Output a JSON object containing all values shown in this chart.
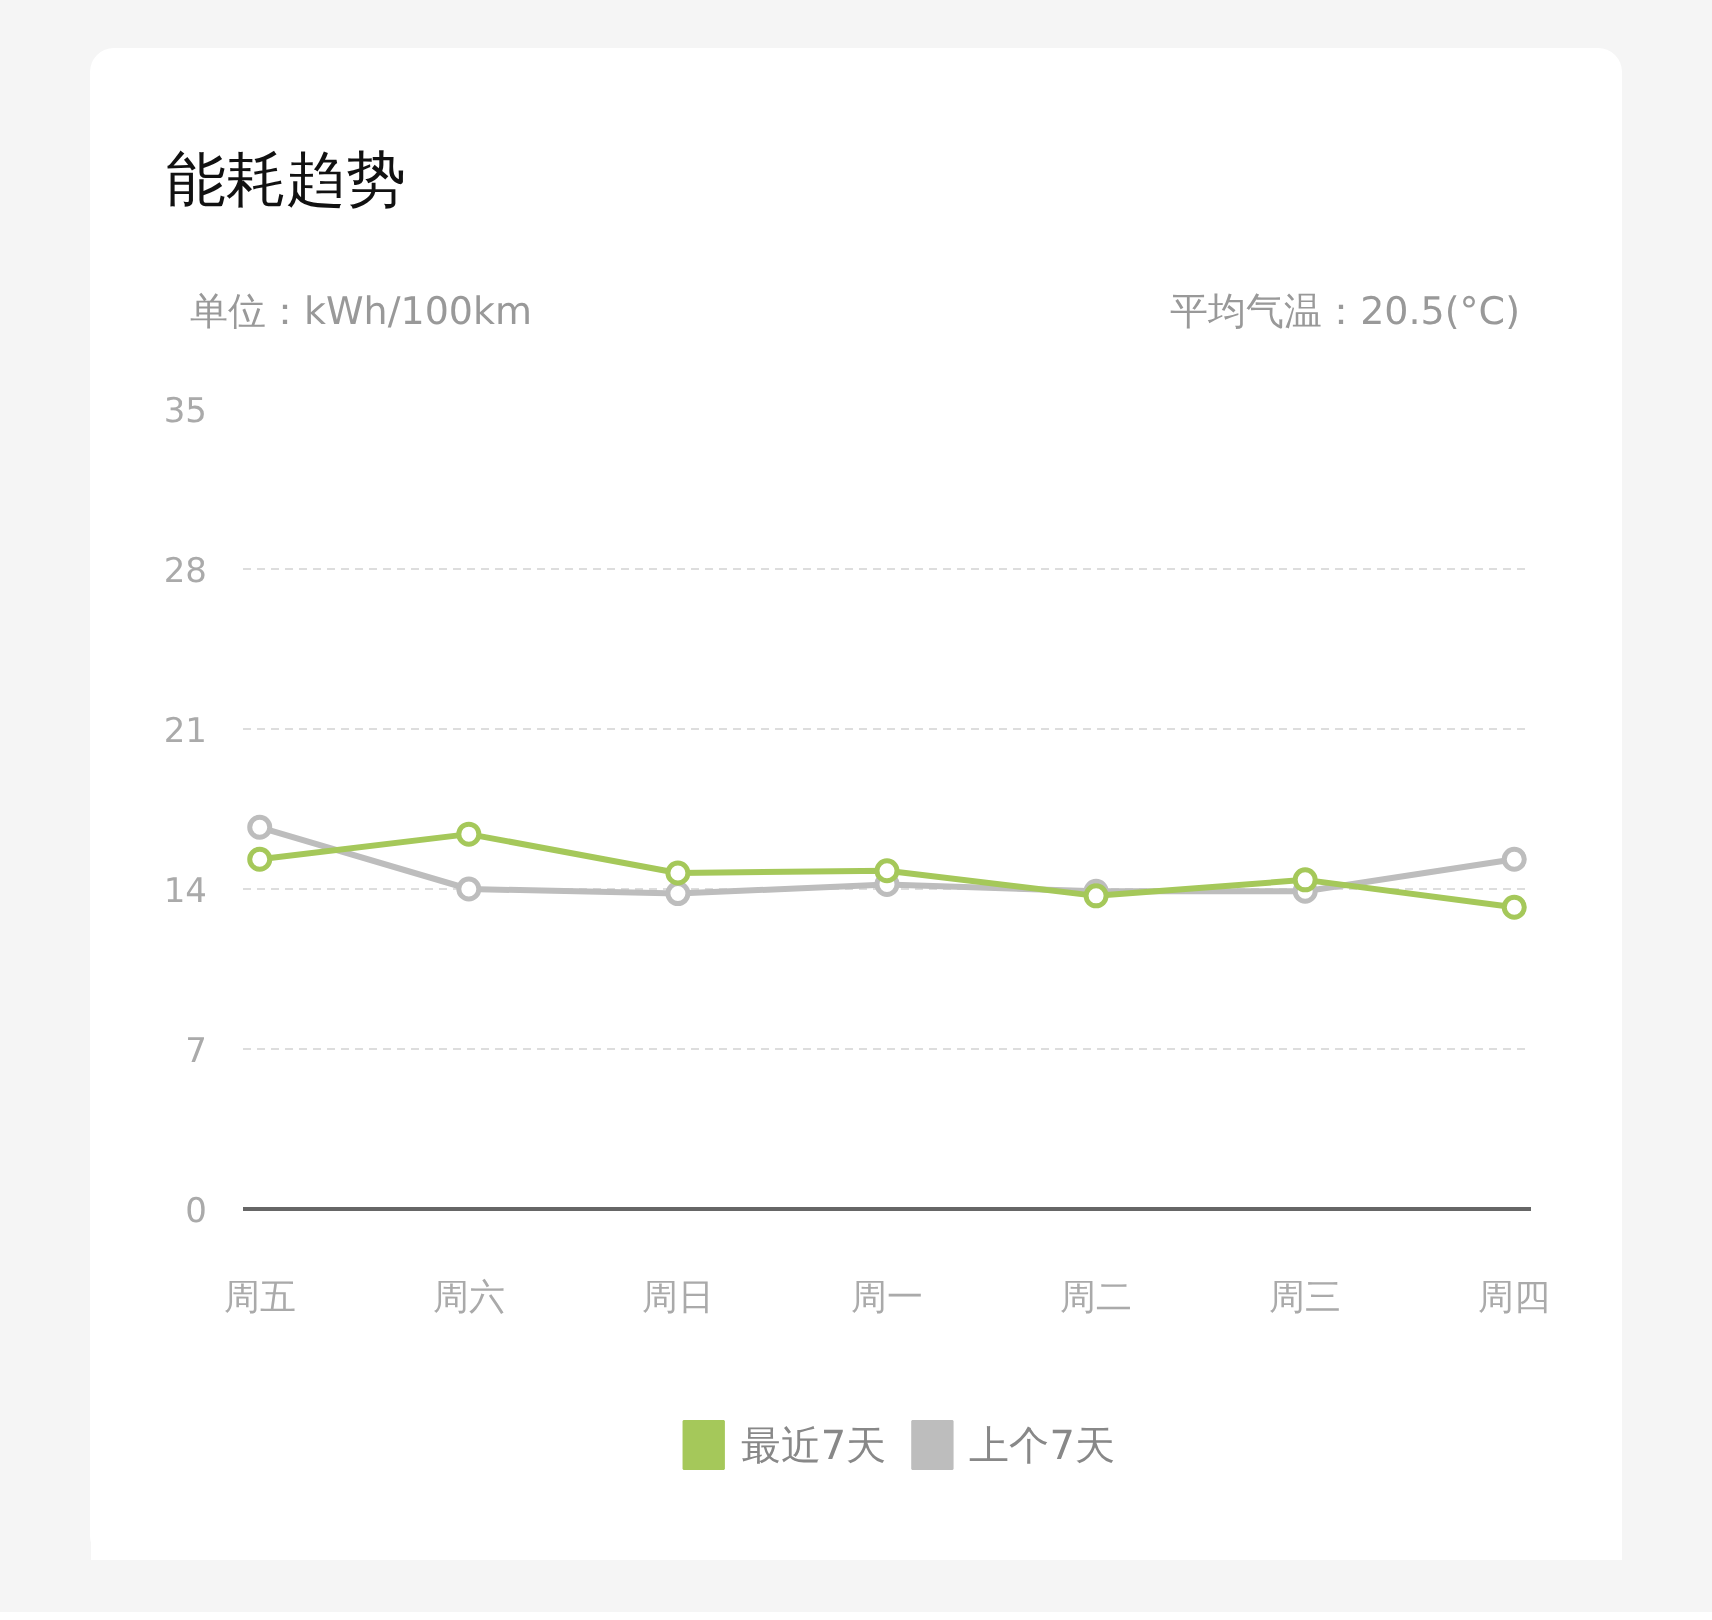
{
  "chart_data": {
    "type": "line",
    "title": "能耗趋势",
    "ylabel": "单位：kWh/100km",
    "annotations": [
      "平均气温：20.5(°C)"
    ],
    "categories": [
      "周五",
      "周六",
      "周日",
      "周一",
      "周二",
      "周三",
      "周四"
    ],
    "series": [
      {
        "name": "最近7天",
        "color": "#a5c85a",
        "values": [
          15.3,
          16.4,
          14.7,
          14.8,
          13.7,
          14.4,
          13.2
        ]
      },
      {
        "name": "上个7天",
        "color": "#bdbdbd",
        "values": [
          16.7,
          14.0,
          13.8,
          14.2,
          13.9,
          13.9,
          15.3
        ]
      }
    ],
    "ylim": [
      0,
      35
    ],
    "yticks": [
      0,
      7,
      14,
      21,
      28,
      35
    ],
    "grid": "y",
    "legend": "bottom",
    "marker": "circle",
    "line_style": "solid"
  }
}
